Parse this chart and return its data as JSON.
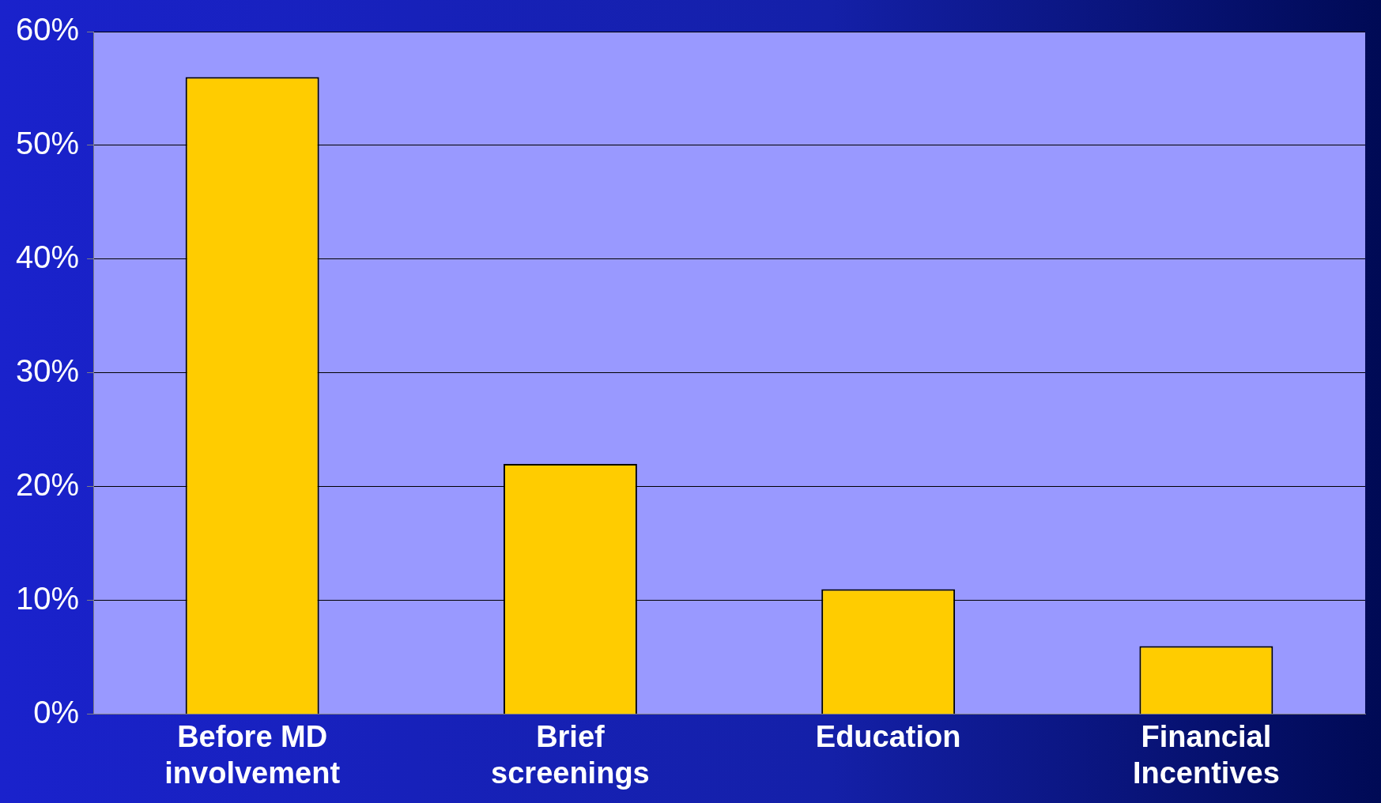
{
  "chart_data": {
    "type": "bar",
    "categories": [
      "Before MD involvement",
      "Brief screenings",
      "Education",
      "Financial Incentives"
    ],
    "values": [
      56,
      22,
      11,
      6
    ],
    "color": "#ffcc00",
    "ylim": [
      0,
      60
    ],
    "yticks": [
      {
        "value": 0,
        "label": "0%"
      },
      {
        "value": 10,
        "label": "10%"
      },
      {
        "value": 20,
        "label": "20%"
      },
      {
        "value": 30,
        "label": "30%"
      },
      {
        "value": 40,
        "label": "40%"
      },
      {
        "value": 50,
        "label": "50%"
      },
      {
        "value": 60,
        "label": "60%"
      }
    ],
    "grid": "y",
    "legend": false
  }
}
